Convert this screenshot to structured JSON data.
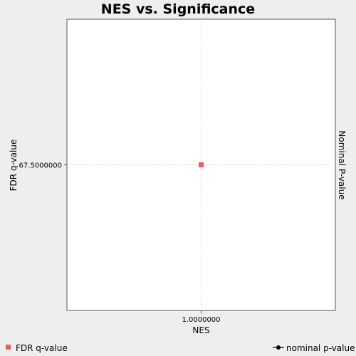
{
  "chart_data": {
    "type": "scatter",
    "title": "NES vs. Significance",
    "xlabel": "NES",
    "ylabel": "FDR q-value",
    "y2label": "Nominal P-value",
    "x_ticks": [
      "1.0000000"
    ],
    "y_ticks": [
      "67.5000000"
    ],
    "x_tick_values": [
      1.0
    ],
    "y_tick_values": [
      67.5
    ],
    "xlim": [
      0.0,
      2.0
    ],
    "ylim": [
      0.0,
      135.0
    ],
    "grid": true,
    "legend_placement": "bottom",
    "series": [
      {
        "name": "FDR q-value",
        "marker": "square",
        "color": "#f05a5a",
        "points": [
          {
            "x": 1.0,
            "y": 67.5
          }
        ]
      },
      {
        "name": "nominal p-value",
        "marker": "circle-line",
        "color": "#000000",
        "points": []
      }
    ]
  }
}
